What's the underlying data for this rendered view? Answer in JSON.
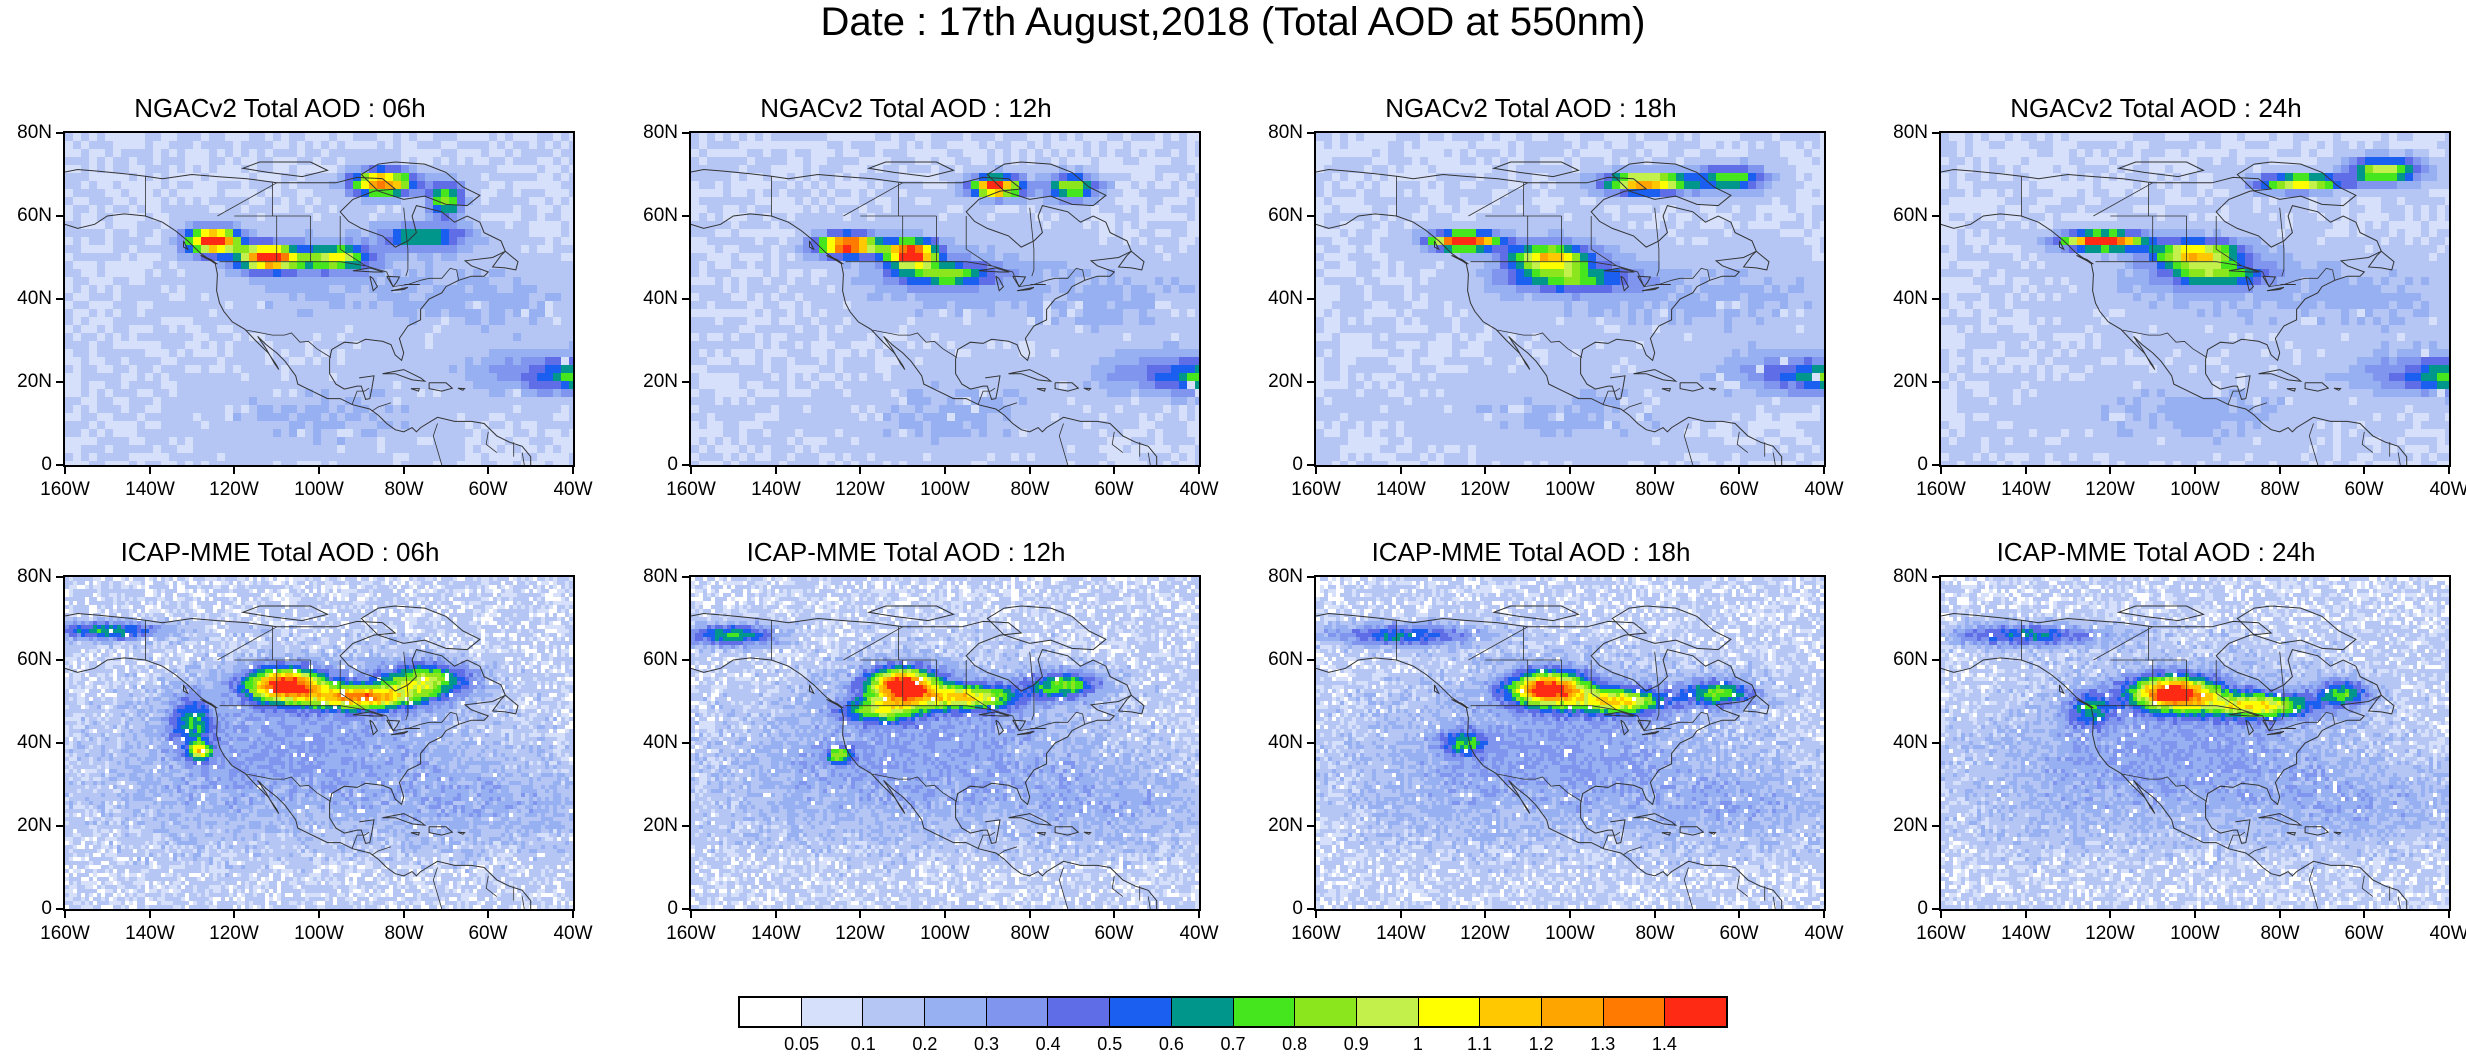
{
  "title": "Date : 17th August,2018 (Total AOD at 550nm)",
  "y_ticks": [
    "80N",
    "60N",
    "40N",
    "20N",
    "0"
  ],
  "x_ticks": [
    "160W",
    "140W",
    "120W",
    "100W",
    "80W",
    "60W",
    "40W"
  ],
  "panels": [
    {
      "title": "NGACv2 Total AOD : 06h"
    },
    {
      "title": "NGACv2 Total AOD : 12h"
    },
    {
      "title": "NGACv2 Total AOD : 18h"
    },
    {
      "title": "NGACv2 Total AOD : 24h"
    },
    {
      "title": "ICAP-MME Total AOD : 06h"
    },
    {
      "title": "ICAP-MME Total AOD : 12h"
    },
    {
      "title": "ICAP-MME Total AOD : 18h"
    },
    {
      "title": "ICAP-MME Total AOD : 24h"
    }
  ],
  "colorbar": {
    "labels": [
      "0.05",
      "0.1",
      "0.2",
      "0.3",
      "0.4",
      "0.5",
      "0.6",
      "0.7",
      "0.8",
      "0.9",
      "1",
      "1.1",
      "1.2",
      "1.3",
      "1.4"
    ],
    "colors": [
      "#ffffff",
      "#d6e0fa",
      "#b5c6f5",
      "#97b0f2",
      "#7f95ee",
      "#5f6ee6",
      "#1a5ff0",
      "#00968c",
      "#46e61e",
      "#8ce61e",
      "#c3f04a",
      "#ffff00",
      "#ffc800",
      "#ffa500",
      "#ff7a00",
      "#ff2a14"
    ]
  }
}
